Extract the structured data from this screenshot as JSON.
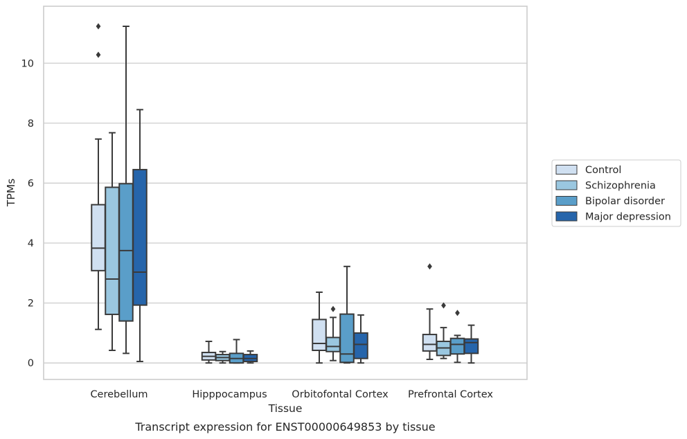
{
  "chart_data": {
    "type": "box",
    "title": "Transcript expression for ENST00000649853 by tissue",
    "xlabel": "Tissue",
    "ylabel": "TPMs",
    "ylim": [
      -0.55,
      11.9
    ],
    "yticks": [
      0,
      2,
      4,
      6,
      8,
      10
    ],
    "grid": "horizontal",
    "legend_position": "right",
    "categories": [
      "Cerebellum",
      "Hipppocampus",
      "Orbitofontal Cortex",
      "Prefrontal Cortex"
    ],
    "series": [
      {
        "name": "Control",
        "color": "#d0e0f1",
        "boxes": [
          {
            "whisker_low": 1.12,
            "q1": 3.08,
            "median": 3.83,
            "q3": 5.28,
            "whisker_high": 7.47,
            "outliers": [
              10.28,
              11.23
            ]
          },
          {
            "whisker_low": 0.0,
            "q1": 0.1,
            "median": 0.22,
            "q3": 0.35,
            "whisker_high": 0.72,
            "outliers": []
          },
          {
            "whisker_low": 0.0,
            "q1": 0.42,
            "median": 0.65,
            "q3": 1.45,
            "whisker_high": 2.36,
            "outliers": []
          },
          {
            "whisker_low": 0.12,
            "q1": 0.4,
            "median": 0.62,
            "q3": 0.95,
            "whisker_high": 1.8,
            "outliers": [
              3.22
            ]
          }
        ]
      },
      {
        "name": "Schizophrenia",
        "color": "#9ac7e0",
        "boxes": [
          {
            "whisker_low": 0.42,
            "q1": 1.62,
            "median": 2.8,
            "q3": 5.86,
            "whisker_high": 7.68,
            "outliers": []
          },
          {
            "whisker_low": 0.0,
            "q1": 0.08,
            "median": 0.18,
            "q3": 0.28,
            "whisker_high": 0.38,
            "outliers": []
          },
          {
            "whisker_low": 0.08,
            "q1": 0.38,
            "median": 0.55,
            "q3": 0.85,
            "whisker_high": 1.52,
            "outliers": [
              1.8
            ]
          },
          {
            "whisker_low": 0.15,
            "q1": 0.25,
            "median": 0.5,
            "q3": 0.72,
            "whisker_high": 1.18,
            "outliers": [
              1.92
            ]
          }
        ]
      },
      {
        "name": "Bipolar disorder",
        "color": "#5a9ec9",
        "boxes": [
          {
            "whisker_low": 0.32,
            "q1": 1.4,
            "median": 3.75,
            "q3": 5.98,
            "whisker_high": 11.23,
            "outliers": []
          },
          {
            "whisker_low": 0.0,
            "q1": 0.0,
            "median": 0.15,
            "q3": 0.32,
            "whisker_high": 0.78,
            "outliers": []
          },
          {
            "whisker_low": 0.0,
            "q1": 0.02,
            "median": 0.3,
            "q3": 1.63,
            "whisker_high": 3.22,
            "outliers": []
          },
          {
            "whisker_low": 0.02,
            "q1": 0.3,
            "median": 0.62,
            "q3": 0.82,
            "whisker_high": 0.92,
            "outliers": [
              1.67
            ]
          }
        ]
      },
      {
        "name": "Major depression",
        "color": "#2665ab",
        "boxes": [
          {
            "whisker_low": 0.05,
            "q1": 1.93,
            "median": 3.03,
            "q3": 6.45,
            "whisker_high": 8.45,
            "outliers": []
          },
          {
            "whisker_low": 0.0,
            "q1": 0.05,
            "median": 0.15,
            "q3": 0.28,
            "whisker_high": 0.4,
            "outliers": []
          },
          {
            "whisker_low": 0.0,
            "q1": 0.15,
            "median": 0.62,
            "q3": 1.0,
            "whisker_high": 1.6,
            "outliers": []
          },
          {
            "whisker_low": 0.0,
            "q1": 0.32,
            "median": 0.68,
            "q3": 0.8,
            "whisker_high": 1.26,
            "outliers": []
          }
        ]
      }
    ]
  }
}
